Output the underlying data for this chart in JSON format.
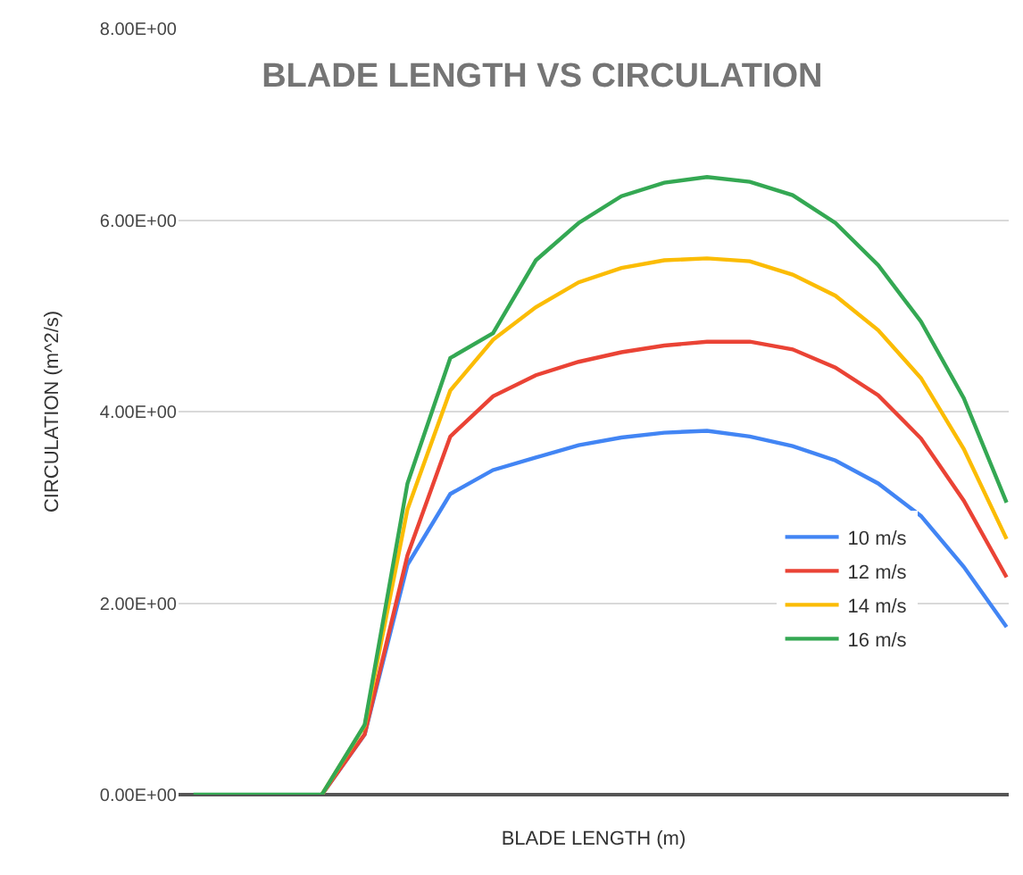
{
  "chart_data": {
    "type": "line",
    "title": "BLADE LENGTH VS CIRCULATION",
    "xlabel": "BLADE LENGTH (m)",
    "ylabel": "CIRCULATION (m^2/s)",
    "categories": [
      null,
      null,
      null,
      null,
      null,
      null,
      null,
      null,
      null,
      null,
      null,
      null,
      null,
      null,
      null,
      null,
      null,
      null,
      null,
      null
    ],
    "series": [
      {
        "name": "10 m/s",
        "color": "#4285f4",
        "values": [
          null,
          null,
          null,
          0,
          0.63,
          2.4,
          3.14,
          3.39,
          3.52,
          3.65,
          3.73,
          3.78,
          3.8,
          3.74,
          3.64,
          3.49,
          3.25,
          2.91,
          2.38,
          1.75
        ]
      },
      {
        "name": "12 m/s",
        "color": "#ea4335",
        "values": [
          null,
          null,
          null,
          0,
          0.63,
          2.5,
          3.74,
          4.16,
          4.38,
          4.52,
          4.62,
          4.69,
          4.73,
          4.73,
          4.65,
          4.46,
          4.17,
          3.72,
          3.07,
          2.27
        ]
      },
      {
        "name": "14 m/s",
        "color": "#fbbc04",
        "values": [
          null,
          null,
          null,
          0,
          0.72,
          2.98,
          4.22,
          4.75,
          5.09,
          5.35,
          5.5,
          5.58,
          5.6,
          5.57,
          5.43,
          5.21,
          4.85,
          4.35,
          3.61,
          2.67
        ]
      },
      {
        "name": "16 m/s",
        "color": "#34a853",
        "values": [
          0,
          0,
          0,
          0,
          0.73,
          3.25,
          4.56,
          4.82,
          5.58,
          5.97,
          6.25,
          6.39,
          6.45,
          6.4,
          6.26,
          5.97,
          5.53,
          4.94,
          4.14,
          3.05
        ]
      }
    ],
    "ylim": [
      0,
      8
    ],
    "yticks": [
      {
        "value": 0,
        "label": "0.00E+00"
      },
      {
        "value": 2,
        "label": "2.00E+00"
      },
      {
        "value": 4,
        "label": "4.00E+00"
      },
      {
        "value": 6,
        "label": "6.00E+00"
      },
      {
        "value": 8,
        "label": "8.00E+00"
      }
    ],
    "grid": "y",
    "legend": "right",
    "marker": "none",
    "line_style": "solid"
  }
}
